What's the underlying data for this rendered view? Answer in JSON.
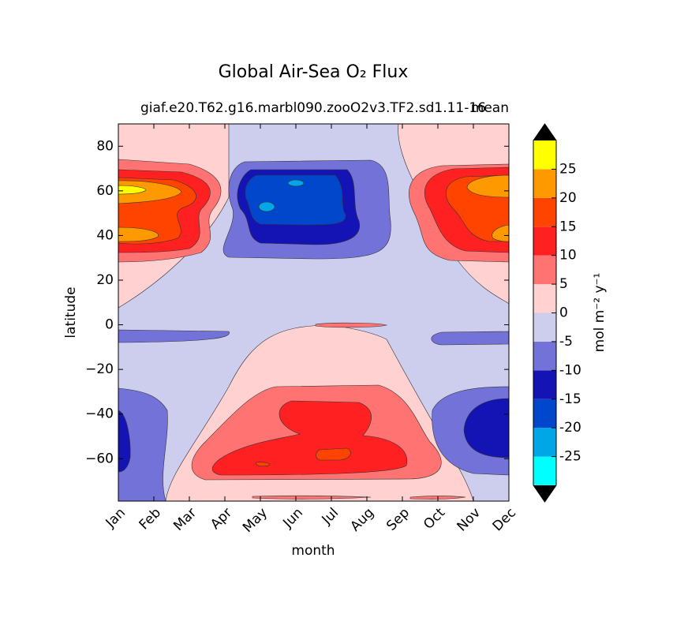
{
  "chart_data": {
    "type": "contour",
    "title": "Global Air-Sea O₂ Flux",
    "subtitle": "giaf.e20.T62.g16.marbl090.zooO2v3.TF2.sd1.11-16",
    "subtitle_right": "mean",
    "xlabel": "month",
    "ylabel": "latitude",
    "categories": [
      "Jan",
      "Feb",
      "Mar",
      "Apr",
      "May",
      "Jun",
      "Jul",
      "Aug",
      "Sep",
      "Oct",
      "Nov",
      "Dec"
    ],
    "ylim": [
      -79,
      90
    ],
    "yticks": [
      {
        "value": -60,
        "label": "−60"
      },
      {
        "value": -40,
        "label": "−40"
      },
      {
        "value": -20,
        "label": "−20"
      },
      0,
      20,
      40,
      60,
      80
    ],
    "colorbar_label": "mol m⁻² y⁻¹",
    "clim": [
      -30,
      30
    ],
    "cticks": [
      {
        "value": -25,
        "label": "-25"
      },
      {
        "value": -20,
        "label": "-20"
      },
      {
        "value": -15,
        "label": "-15"
      },
      {
        "value": -10,
        "label": "-10"
      },
      {
        "value": -5,
        "label": "-5"
      },
      0,
      5,
      10,
      15,
      20,
      25
    ],
    "colors": [
      "#00ffff",
      "#00a6e6",
      "#0047cc",
      "#1414b4",
      "#7272d8",
      "#cdcdee",
      "#ffd1d1",
      "#ff7373",
      "#ff2121",
      "#ff4400",
      "#ff9900",
      "#ffff00"
    ],
    "extend_color": "#000000"
  }
}
